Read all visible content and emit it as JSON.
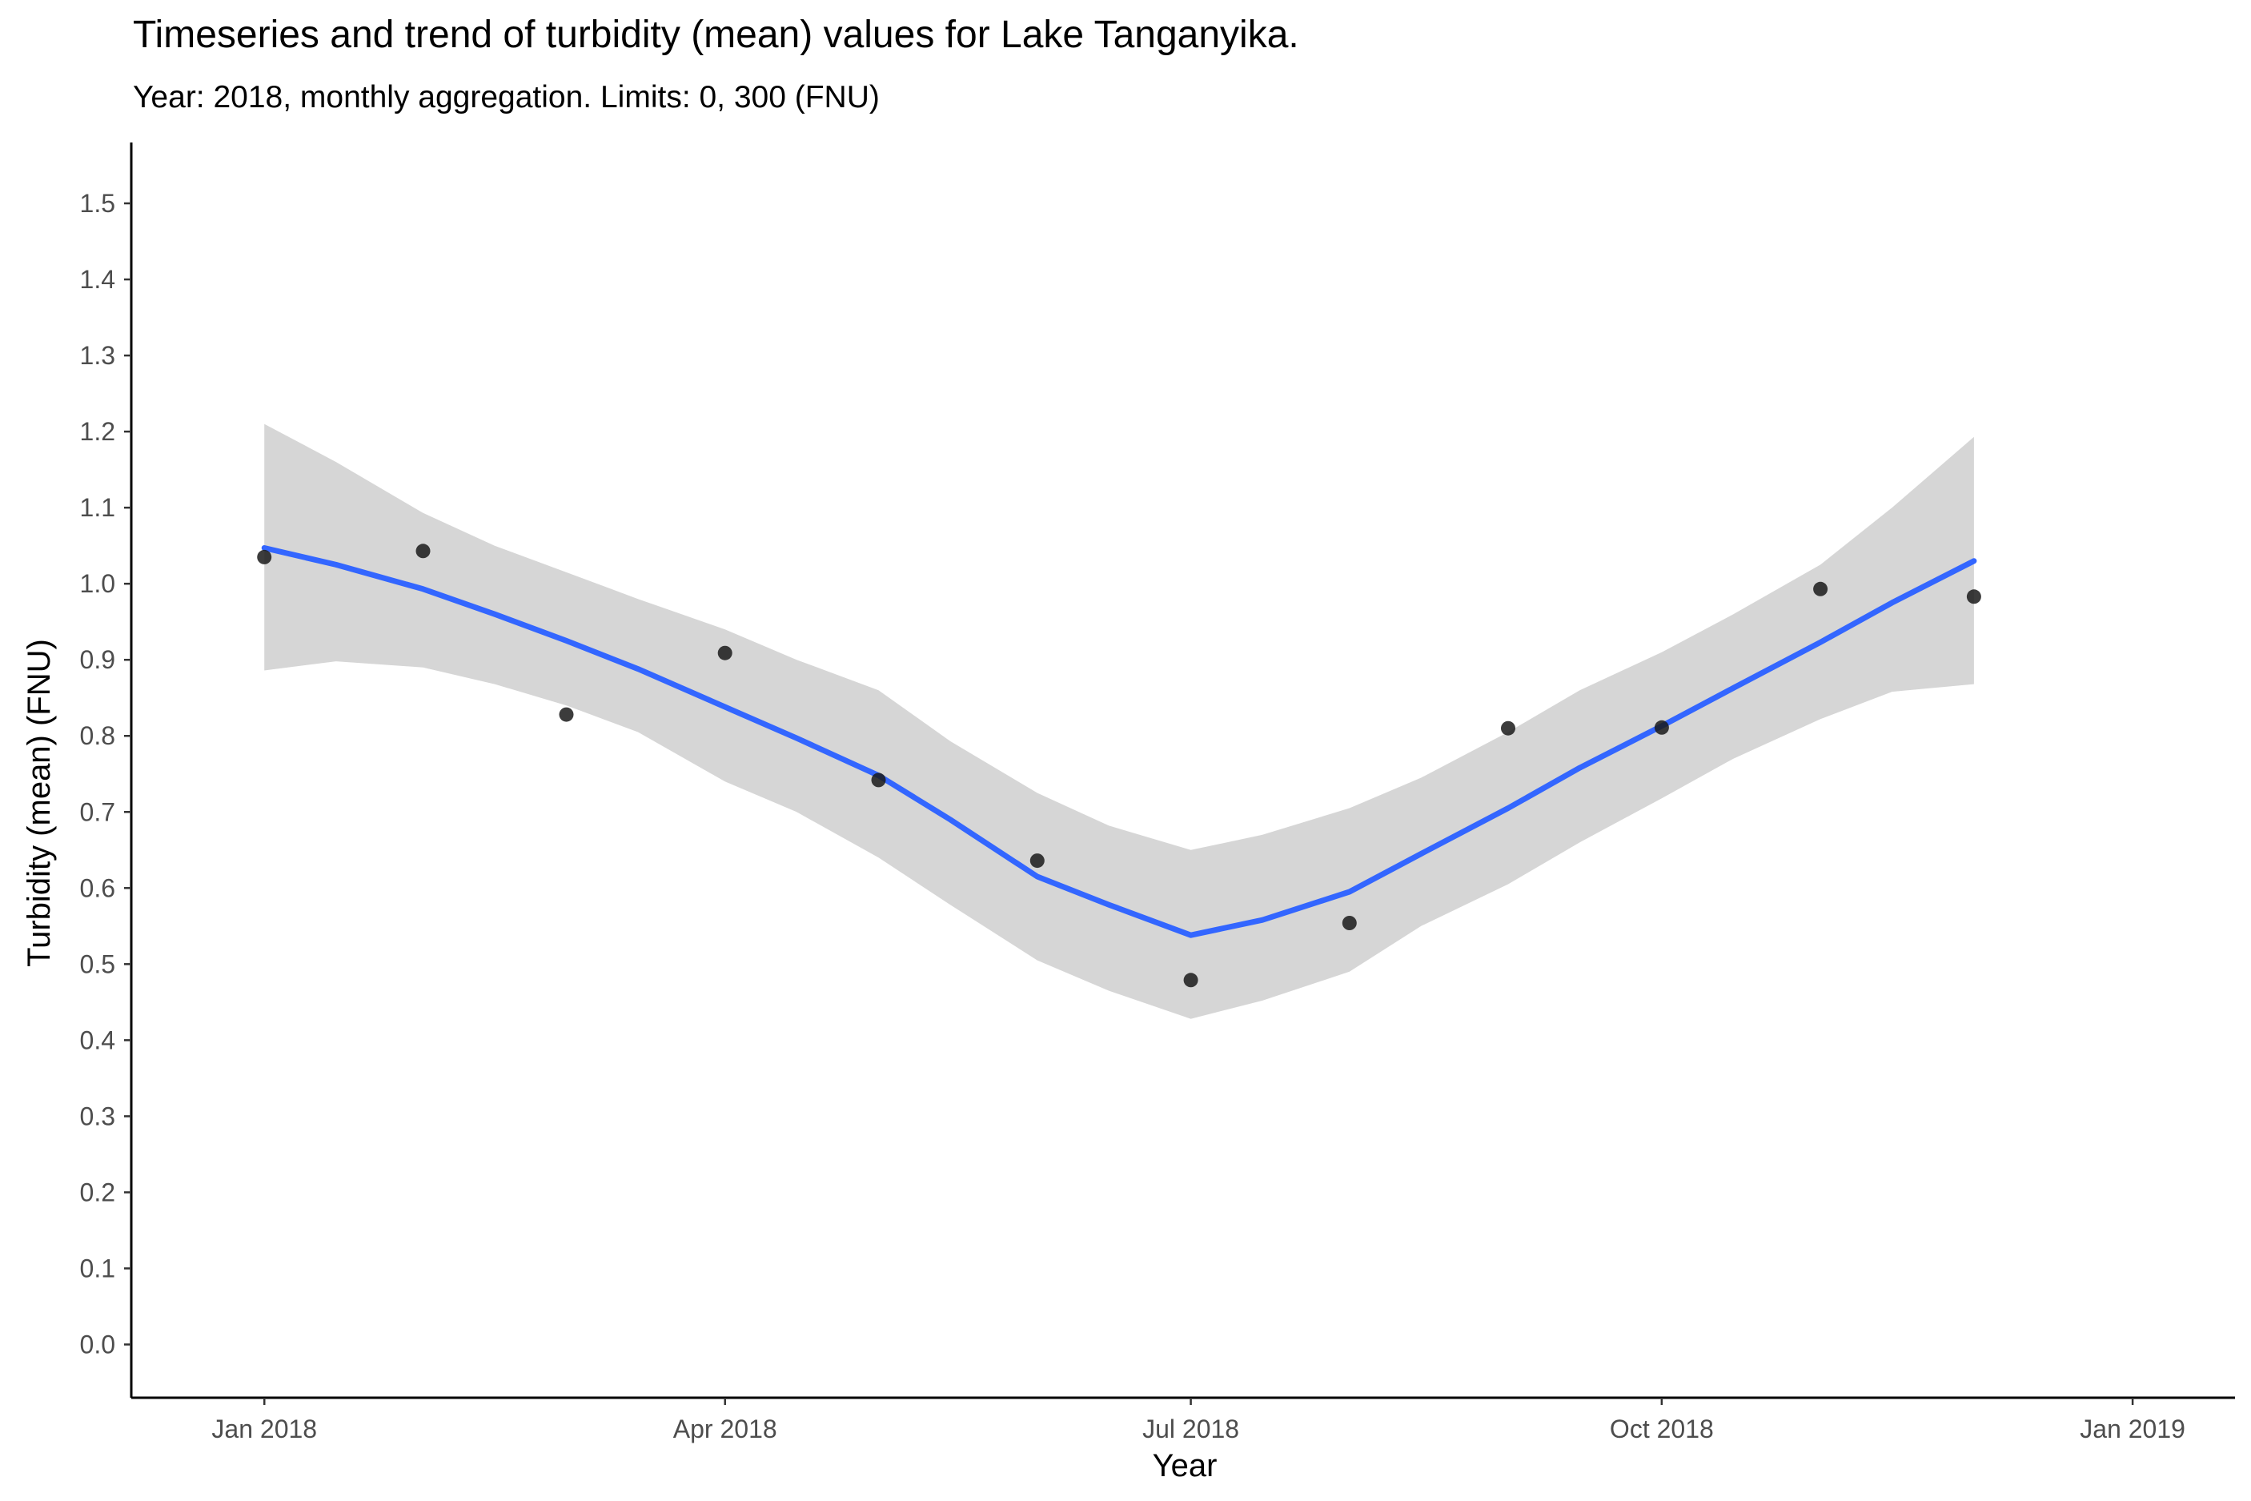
{
  "chart_data": {
    "type": "scatter",
    "title": "Timeseries and trend of turbidity (mean) values for Lake Tanganyika.",
    "subtitle": "Year: 2018, monthly aggregation. Limits: 0, 300 (FNU)",
    "xlabel": "Year",
    "ylabel": "Turbidity (mean) (FNU)",
    "x_axis": {
      "type": "date",
      "range": [
        "2017-12-06",
        "2019-01-21"
      ],
      "ticks": [
        {
          "value": "2018-01-01",
          "label": "Jan 2018"
        },
        {
          "value": "2018-04-01",
          "label": "Apr 2018"
        },
        {
          "value": "2018-07-01",
          "label": "Jul 2018"
        },
        {
          "value": "2018-10-01",
          "label": "Oct 2018"
        },
        {
          "value": "2019-01-01",
          "label": "Jan 2019"
        }
      ]
    },
    "y_axis": {
      "range": [
        -0.07,
        1.58
      ],
      "ticks": [
        "0.0",
        "0.1",
        "0.2",
        "0.3",
        "0.4",
        "0.5",
        "0.6",
        "0.7",
        "0.8",
        "0.9",
        "1.0",
        "1.1",
        "1.2",
        "1.3",
        "1.4",
        "1.5"
      ]
    },
    "grid": false,
    "points": [
      {
        "x": "2018-01-01",
        "y": 1.035
      },
      {
        "x": "2018-02-01",
        "y": 1.043
      },
      {
        "x": "2018-03-01",
        "y": 0.828
      },
      {
        "x": "2018-04-01",
        "y": 0.909
      },
      {
        "x": "2018-05-01",
        "y": 0.742
      },
      {
        "x": "2018-06-01",
        "y": 0.636
      },
      {
        "x": "2018-07-01",
        "y": 0.479
      },
      {
        "x": "2018-08-01",
        "y": 0.554
      },
      {
        "x": "2018-09-01",
        "y": 0.81
      },
      {
        "x": "2018-10-01",
        "y": 0.811
      },
      {
        "x": "2018-11-01",
        "y": 0.993
      },
      {
        "x": "2018-12-01",
        "y": 0.983
      }
    ],
    "trend": [
      {
        "x": "2018-01-01",
        "y": 1.047,
        "lower": 0.886,
        "upper": 1.21
      },
      {
        "x": "2018-01-15",
        "y": 1.025,
        "lower": 0.898,
        "upper": 1.16
      },
      {
        "x": "2018-02-01",
        "y": 0.993,
        "lower": 0.89,
        "upper": 1.093
      },
      {
        "x": "2018-02-15",
        "y": 0.96,
        "lower": 0.868,
        "upper": 1.05
      },
      {
        "x": "2018-03-01",
        "y": 0.925,
        "lower": 0.84,
        "upper": 1.015
      },
      {
        "x": "2018-03-15",
        "y": 0.888,
        "lower": 0.805,
        "upper": 0.98
      },
      {
        "x": "2018-04-01",
        "y": 0.838,
        "lower": 0.74,
        "upper": 0.94
      },
      {
        "x": "2018-04-15",
        "y": 0.797,
        "lower": 0.7,
        "upper": 0.9
      },
      {
        "x": "2018-05-01",
        "y": 0.748,
        "lower": 0.64,
        "upper": 0.86
      },
      {
        "x": "2018-05-15",
        "y": 0.69,
        "lower": 0.578,
        "upper": 0.793
      },
      {
        "x": "2018-06-01",
        "y": 0.615,
        "lower": 0.505,
        "upper": 0.725
      },
      {
        "x": "2018-06-15",
        "y": 0.578,
        "lower": 0.465,
        "upper": 0.682
      },
      {
        "x": "2018-07-01",
        "y": 0.538,
        "lower": 0.428,
        "upper": 0.65
      },
      {
        "x": "2018-07-15",
        "y": 0.558,
        "lower": 0.452,
        "upper": 0.67
      },
      {
        "x": "2018-08-01",
        "y": 0.595,
        "lower": 0.49,
        "upper": 0.705
      },
      {
        "x": "2018-08-15",
        "y": 0.645,
        "lower": 0.55,
        "upper": 0.745
      },
      {
        "x": "2018-09-01",
        "y": 0.705,
        "lower": 0.605,
        "upper": 0.805
      },
      {
        "x": "2018-09-15",
        "y": 0.758,
        "lower": 0.66,
        "upper": 0.86
      },
      {
        "x": "2018-10-01",
        "y": 0.813,
        "lower": 0.718,
        "upper": 0.91
      },
      {
        "x": "2018-10-15",
        "y": 0.863,
        "lower": 0.77,
        "upper": 0.96
      },
      {
        "x": "2018-11-01",
        "y": 0.923,
        "lower": 0.822,
        "upper": 1.025
      },
      {
        "x": "2018-11-15",
        "y": 0.975,
        "lower": 0.858,
        "upper": 1.1
      },
      {
        "x": "2018-12-01",
        "y": 1.03,
        "lower": 0.868,
        "upper": 1.193
      }
    ],
    "colors": {
      "points": "#1a1a1a",
      "trend_line": "#3366ff",
      "ribbon": "#d6d6d6",
      "axis": "#000000",
      "tick_label": "#4d4d4d",
      "text": "#000000"
    }
  }
}
